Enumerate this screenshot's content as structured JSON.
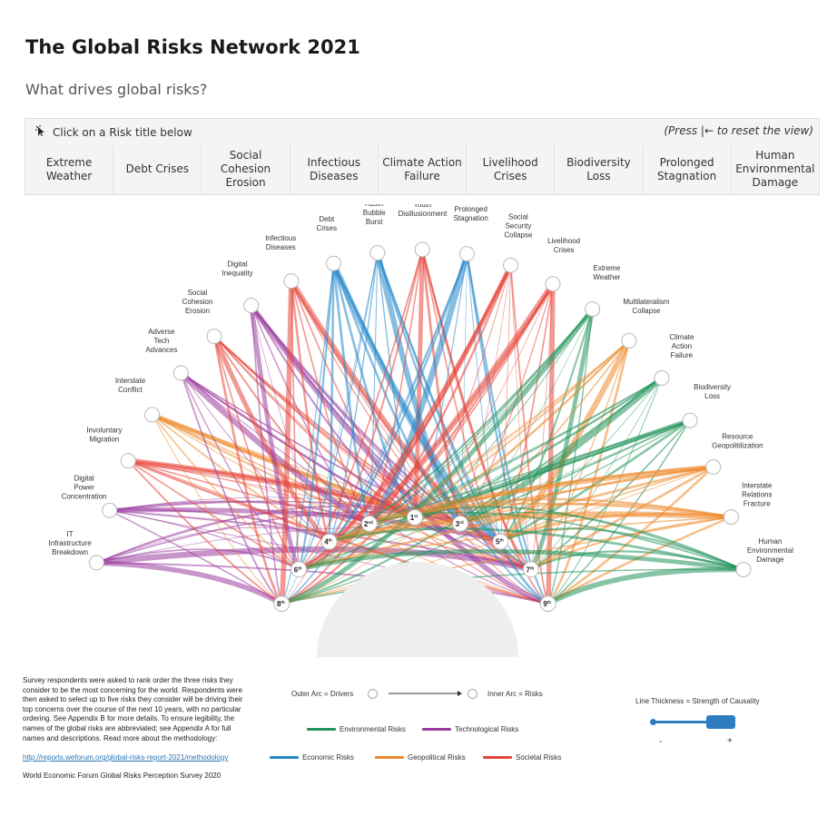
{
  "header": {
    "title": "The Global Risks Network 2021",
    "subtitle": "What drives global risks?"
  },
  "filter_panel": {
    "hint": "Click on a Risk title below",
    "reset": "(Press |← to reset the view)",
    "buttons": [
      "Extreme Weather",
      "Debt Crises",
      "Social Cohesion Erosion",
      "Infectious Diseases",
      "Climate Action Failure",
      "Livelihood Crises",
      "Biodiversity Loss",
      "Prolonged Stagnation",
      "Human Environmental Damage"
    ]
  },
  "colors": {
    "environmental": "#23935b",
    "technological": "#9a3e9e",
    "economic": "#2586c8",
    "geopolitical": "#ee8a2e",
    "societal": "#e8453a"
  },
  "chart_data": {
    "type": "arc-network",
    "outer_arc_nodes": [
      {
        "label": "IT Infrastructure Breakdown",
        "category": "technological"
      },
      {
        "label": "Digital Power Concentration",
        "category": "technological"
      },
      {
        "label": "Involuntary Migration",
        "category": "societal"
      },
      {
        "label": "Interstate Conflict",
        "category": "geopolitical"
      },
      {
        "label": "Adverse Tech Advances",
        "category": "technological"
      },
      {
        "label": "Social Cohesion Erosion",
        "category": "societal"
      },
      {
        "label": "Digital Inequality",
        "category": "technological"
      },
      {
        "label": "Infectious Diseases",
        "category": "societal"
      },
      {
        "label": "Debt Crises",
        "category": "economic"
      },
      {
        "label": "Asset Bubble Burst",
        "category": "economic"
      },
      {
        "label": "Youth Disillusionment",
        "category": "societal"
      },
      {
        "label": "Prolonged Stagnation",
        "category": "economic"
      },
      {
        "label": "Social Security Collapse",
        "category": "societal"
      },
      {
        "label": "Livelihood Crises",
        "category": "societal"
      },
      {
        "label": "Extreme Weather",
        "category": "environmental"
      },
      {
        "label": "Multilateralism Collapse",
        "category": "geopolitical"
      },
      {
        "label": "Climate Action Failure",
        "category": "environmental"
      },
      {
        "label": "Biodiversity Loss",
        "category": "environmental"
      },
      {
        "label": "Resource Geopolitilization",
        "category": "geopolitical"
      },
      {
        "label": "Interstate Relations Fracture",
        "category": "geopolitical"
      },
      {
        "label": "Human Environmental Damage",
        "category": "environmental"
      }
    ],
    "inner_arc_nodes": [
      {
        "rank": "8",
        "suffix": "th"
      },
      {
        "rank": "6",
        "suffix": "th"
      },
      {
        "rank": "4",
        "suffix": "th"
      },
      {
        "rank": "2",
        "suffix": "nd"
      },
      {
        "rank": "1",
        "suffix": "st"
      },
      {
        "rank": "3",
        "suffix": "rd"
      },
      {
        "rank": "5",
        "suffix": "th"
      },
      {
        "rank": "7",
        "suffix": "th"
      },
      {
        "rank": "9",
        "suffix": "th"
      }
    ]
  },
  "legend": {
    "outer_arc": "Outer Arc = Drivers",
    "inner_arc": "Inner Arc = Risks",
    "line_thickness": "Line Thickness = Strength of Causality",
    "minus": "-",
    "plus": "+",
    "categories": [
      {
        "label": "Environmental Risks",
        "key": "environmental"
      },
      {
        "label": "Technological Risks",
        "key": "technological"
      },
      {
        "label": "Economic Risks",
        "key": "economic"
      },
      {
        "label": "Geopolitical Risks",
        "key": "geopolitical"
      },
      {
        "label": "Societal Risks",
        "key": "societal"
      }
    ]
  },
  "footer": {
    "note": "Survey respondents were asked to rank order the three risks they consider to be the most concerning for the world. Respondents were then asked to select up to five risks they consider will be driving their top concerns over the course of the next 10 years, with no particular ordering. See Appendix B for more details. To ensure legibility, the names of the global risks are abbreviated; see Appendix A for full names and descriptions. Read more about the methodology:",
    "link": "http://reports.weforum.org/global-risks-report-2021/methodology",
    "source": "World Economic Forum Global Risks Perception Survey 2020"
  }
}
